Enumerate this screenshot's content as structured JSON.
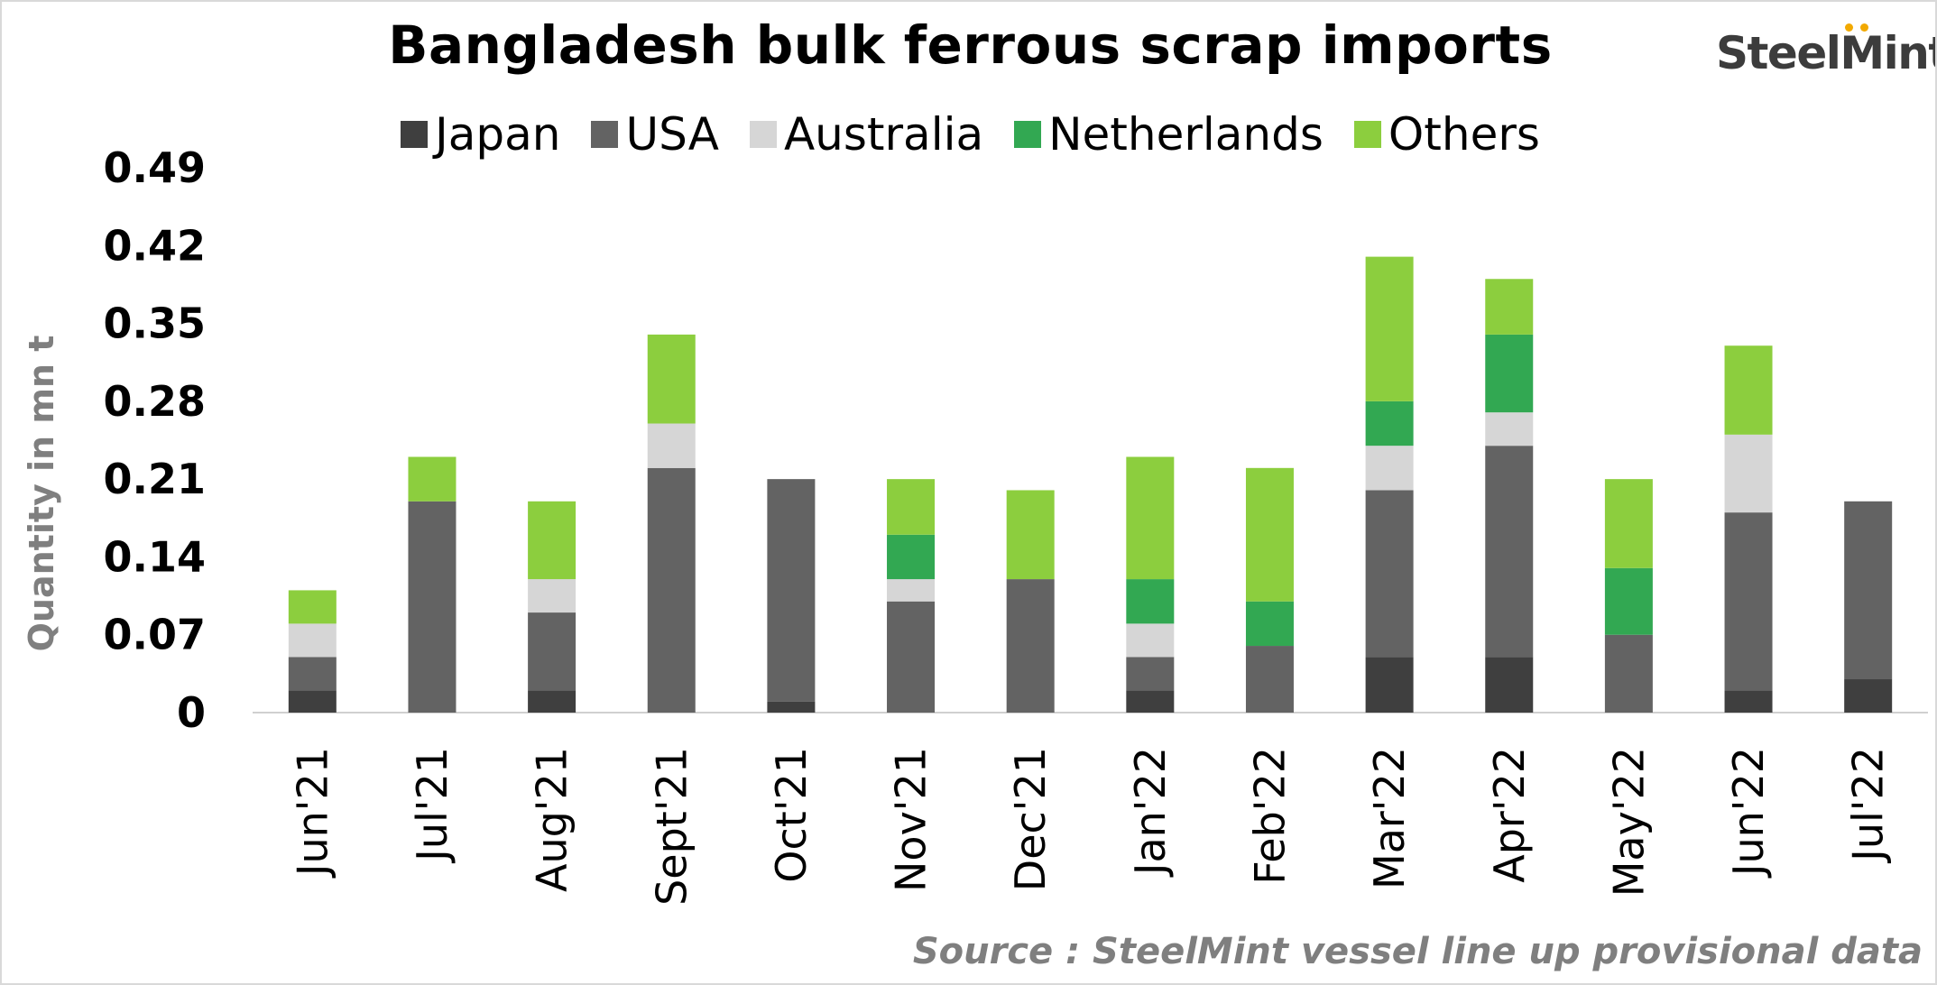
{
  "chart_data": {
    "type": "bar",
    "stacked": true,
    "title": "Bangladesh bulk ferrous scrap imports",
    "ylabel": "Quantity in mn t",
    "xlabel": "",
    "ylim": [
      0,
      0.49
    ],
    "yticks": [
      "0",
      "0.07",
      "0.14",
      "0.21",
      "0.28",
      "0.35",
      "0.42",
      "0.49"
    ],
    "yticks_values": [
      0,
      0.07,
      0.14,
      0.21,
      0.28,
      0.35,
      0.42,
      0.49
    ],
    "categories": [
      "Jun'21",
      "Jul'21",
      "Aug'21",
      "Sept'21",
      "Oct'21",
      "Nov'21",
      "Dec'21",
      "Jan'22",
      "Feb'22",
      "Mar'22",
      "Apr'22",
      "May'22",
      "Jun'22",
      "Jul'22"
    ],
    "series": [
      {
        "name": "Japan",
        "color": "#3f3f3f",
        "values": [
          0.02,
          0,
          0.02,
          0,
          0.01,
          0,
          0,
          0.02,
          0,
          0.05,
          0.05,
          0,
          0.02,
          0.03
        ]
      },
      {
        "name": "USA",
        "color": "#636363",
        "values": [
          0.03,
          0.19,
          0.07,
          0.22,
          0.2,
          0.1,
          0.12,
          0.03,
          0.06,
          0.15,
          0.19,
          0.07,
          0.16,
          0.16
        ]
      },
      {
        "name": "Australia",
        "color": "#d6d6d6",
        "values": [
          0.03,
          0,
          0.03,
          0.04,
          0,
          0.02,
          0,
          0.03,
          0,
          0.04,
          0.03,
          0,
          0.07,
          0
        ]
      },
      {
        "name": "Netherlands",
        "color": "#32a852",
        "values": [
          0,
          0,
          0,
          0,
          0,
          0.04,
          0,
          0.04,
          0.04,
          0.04,
          0.07,
          0.06,
          0,
          0
        ]
      },
      {
        "name": "Others",
        "color": "#8cce3e",
        "values": [
          0.03,
          0.04,
          0.07,
          0.08,
          0,
          0.05,
          0.08,
          0.11,
          0.12,
          0.13,
          0.05,
          0.08,
          0.08,
          0
        ]
      }
    ],
    "grid": false,
    "legend_position": "top"
  },
  "source": "Source : SteelMint vessel line up provisional data",
  "brand": "SteelMint"
}
